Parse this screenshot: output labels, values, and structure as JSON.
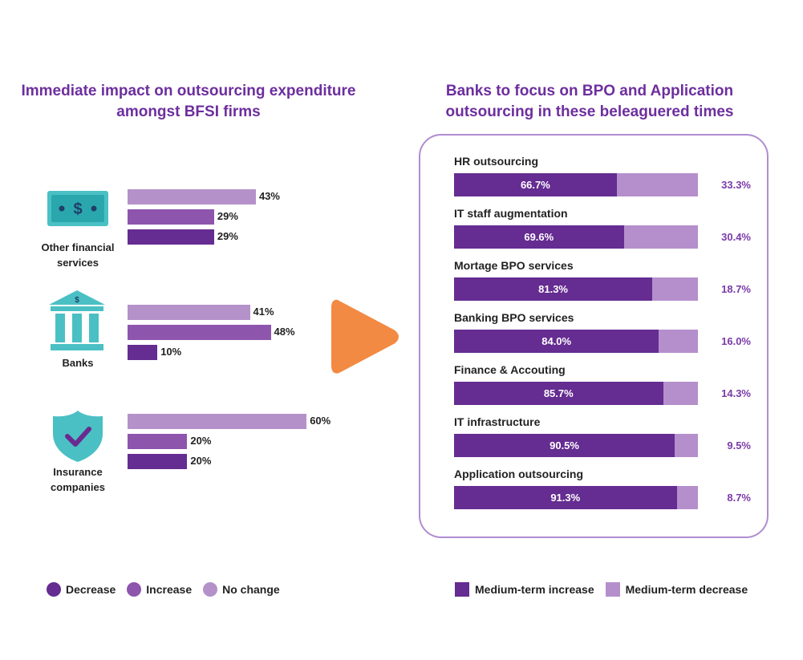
{
  "colors": {
    "decrease": "#652c91",
    "increase": "#8e55ad",
    "no_change": "#b492c9",
    "medium_increase": "#652c91",
    "medium_decrease": "#b58fcc",
    "title": "#6d2e9e",
    "icon_teal": "#4ac0c4",
    "arrow": "#f28a43"
  },
  "left_title": {
    "line1": "Immediate impact on outsourcing expenditure",
    "line2": "amongst BFSI firms"
  },
  "right_title": {
    "line1": "Banks to focus on BPO and Application",
    "line2": "outsourcing in these beleaguered times"
  },
  "categories": {
    "other": {
      "label1": "Other financial",
      "label2": "services",
      "icon": "dollar-bill-icon"
    },
    "banks": {
      "label1": "Banks",
      "icon": "bank-building-icon"
    },
    "insurance": {
      "label1": "Insurance",
      "label2": "companies",
      "icon": "shield-check-icon"
    }
  },
  "legend_left": {
    "decrease": "Decrease",
    "increase": "Increase",
    "no_change": "No change"
  },
  "legend_right": {
    "increase": "Medium-term increase",
    "decrease": "Medium-term decrease"
  },
  "chart_data": [
    {
      "type": "bar",
      "title": "Immediate impact on outsourcing expenditure amongst BFSI firms",
      "categories": [
        "Other financial services",
        "Banks",
        "Insurance companies"
      ],
      "series": [
        {
          "name": "No change",
          "values": [
            43,
            41,
            60
          ],
          "labels": [
            "43%",
            "41%",
            "60%"
          ]
        },
        {
          "name": "Increase",
          "values": [
            29,
            48,
            20
          ],
          "labels": [
            "29%",
            "48%",
            "20%"
          ]
        },
        {
          "name": "Decrease",
          "values": [
            29,
            10,
            20
          ],
          "labels": [
            "29%",
            "10%",
            "20%"
          ]
        }
      ],
      "unit": "%"
    },
    {
      "type": "bar",
      "stacked": true,
      "title": "Banks to focus on BPO and Application outsourcing in these beleaguered times",
      "categories": [
        "HR outsourcing",
        "IT staff augmentation",
        "Mortage BPO services",
        "Banking BPO services",
        "Finance & Accouting",
        "IT infrastructure",
        "Application outsourcing"
      ],
      "series": [
        {
          "name": "Medium-term increase",
          "values": [
            66.7,
            69.6,
            81.3,
            84.0,
            85.7,
            90.5,
            91.3
          ],
          "labels": [
            "66.7%",
            "69.6%",
            "81.3%",
            "84.0%",
            "85.7%",
            "90.5%",
            "91.3%"
          ]
        },
        {
          "name": "Medium-term decrease",
          "values": [
            33.3,
            30.4,
            18.7,
            16.0,
            14.3,
            9.5,
            8.7
          ],
          "labels": [
            "33.3%",
            "30.4%",
            "18.7%",
            "16.0%",
            "14.3%",
            "9.5%",
            "8.7%"
          ]
        }
      ],
      "unit": "%"
    }
  ]
}
